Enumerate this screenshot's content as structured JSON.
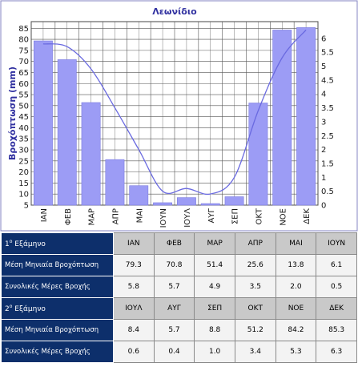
{
  "chart_data": {
    "type": "bar",
    "title": "Λεωνίδιο",
    "ylabel": "Βροχόπτωση  (mm)",
    "categories": [
      "ΙΑΝ",
      "ΦΕΒ",
      "ΜΑΡ",
      "ΑΠΡ",
      "ΜΑΙ",
      "ΙΟΥΝ",
      "ΙΟΥΛ",
      "ΑΥΓ",
      "ΣΕΠ",
      "ΟΚΤ",
      "ΝΟΕ",
      "ΔΕΚ"
    ],
    "ylim": [
      5,
      88
    ],
    "y2lim": [
      0,
      6.6
    ],
    "yticks": [
      "5",
      "10",
      "15",
      "20",
      "25",
      "30",
      "35",
      "40",
      "45",
      "50",
      "55",
      "60",
      "65",
      "70",
      "75",
      "80",
      "85"
    ],
    "y2ticks": [
      "0",
      "0.5",
      "1",
      "1.5",
      "2",
      "2.5",
      "3",
      "3.5",
      "4",
      "4.5",
      "5",
      "5.5",
      "6"
    ],
    "grid": true,
    "series": [
      {
        "values": [
          79.3,
          70.8,
          51.4,
          25.6,
          13.8,
          6.1,
          8.4,
          5.7,
          8.8,
          51.2,
          84.2,
          85.3
        ],
        "color": "#9c9cf5",
        "kind": "bar",
        "axis": "left"
      },
      {
        "values": [
          5.8,
          5.7,
          4.9,
          3.5,
          2.0,
          0.5,
          0.6,
          0.4,
          1.0,
          3.4,
          5.3,
          6.3
        ],
        "color": "#6a6ae0",
        "kind": "line",
        "axis": "right"
      }
    ],
    "colors": {
      "title": "#3030a0",
      "axis_text": "#1a1a1a",
      "ylabel": "#3030a0",
      "grid": "#555555",
      "frame": "#8080c0"
    }
  },
  "table": {
    "semester1": {
      "heading": "Εξάμηνο",
      "heading_num": "1",
      "heading_sup": "ο",
      "months": [
        "ΙΑΝ",
        "ΦΕΒ",
        "ΜΑΡ",
        "ΑΠΡ",
        "ΜΑΙ",
        "ΙΟΥΝ"
      ],
      "rain_label": "Μέση Μηνιαία Βροχόπτωση",
      "rain": [
        "79.3",
        "70.8",
        "51.4",
        "25.6",
        "13.8",
        "6.1"
      ],
      "days_label": "Συνολικές Μέρες Βροχής",
      "days": [
        "5.8",
        "5.7",
        "4.9",
        "3.5",
        "2.0",
        "0.5"
      ]
    },
    "semester2": {
      "heading": "Εξάμηνο",
      "heading_num": "2",
      "heading_sup": "ο",
      "months": [
        "ΙΟΥΛ",
        "ΑΥΓ",
        "ΣΕΠ",
        "ΟΚΤ",
        "ΝΟΕ",
        "ΔΕΚ"
      ],
      "rain_label": "Μέση Μηνιαία Βροχόπτωση",
      "rain": [
        "8.4",
        "5.7",
        "8.8",
        "51.2",
        "84.2",
        "85.3"
      ],
      "days_label": "Συνολικές Μέρες Βροχής",
      "days": [
        "0.6",
        "0.4",
        "1.0",
        "3.4",
        "5.3",
        "6.3"
      ]
    }
  }
}
